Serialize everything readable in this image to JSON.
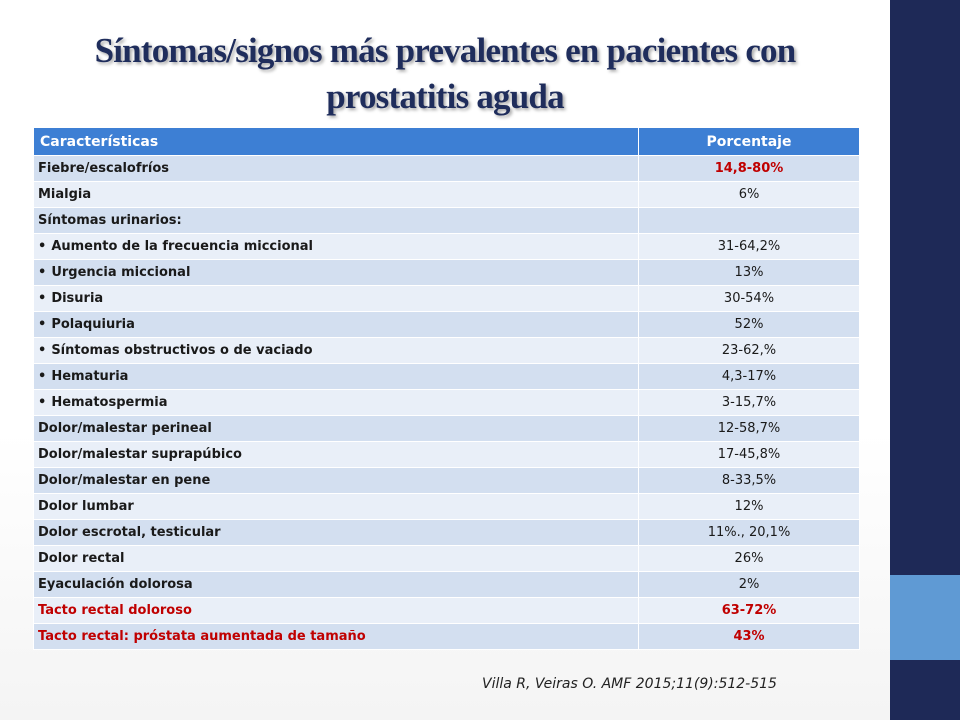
{
  "slide": {
    "title": "Síntomas/signos más prevalentes en pacientes con prostatitis aguda",
    "citation": "Villa R, Veiras O. AMF 2015;11(9):512-515",
    "colors": {
      "title": "#1f2d5c",
      "header": "#3d7fd4",
      "row_odd": "#d3dff0",
      "row_even": "#e9eff8",
      "highlight": "#c00000",
      "side_bar": "#1e2957",
      "side_accent": "#5f9ad4"
    }
  },
  "table": {
    "headers": [
      "Características",
      "Porcentaje"
    ],
    "rows": [
      {
        "label": "Fiebre/escalofríos",
        "value": "14,8-80%",
        "bullet": false,
        "value_red": true,
        "value_bold": true
      },
      {
        "label": "Mialgia",
        "value": "6%",
        "bullet": false
      },
      {
        "label": "Síntomas urinarios:",
        "value": "",
        "bullet": false
      },
      {
        "label": "Aumento de la frecuencia miccional",
        "value": "31-64,2%",
        "bullet": true
      },
      {
        "label": "Urgencia miccional",
        "value": "13%",
        "bullet": true
      },
      {
        "label": "Disuria",
        "value": "30-54%",
        "bullet": true
      },
      {
        "label": "Polaquiuria",
        "value": "52%",
        "bullet": true
      },
      {
        "label": "Síntomas obstructivos o de vaciado",
        "value": "23-62,%",
        "bullet": true
      },
      {
        "label": "Hematuria",
        "value": "4,3-17%",
        "bullet": true
      },
      {
        "label": "Hematospermia",
        "value": "3-15,7%",
        "bullet": true
      },
      {
        "label": "Dolor/malestar perineal",
        "value": "12-58,7%",
        "bullet": false
      },
      {
        "label": "Dolor/malestar suprapúbico",
        "value": "17-45,8%",
        "bullet": false
      },
      {
        "label": "Dolor/malestar en pene",
        "value": "8-33,5%",
        "bullet": false
      },
      {
        "label": "Dolor lumbar",
        "value": "12%",
        "bullet": false
      },
      {
        "label": "Dolor escrotal, testicular",
        "value": "11%., 20,1%",
        "bullet": false
      },
      {
        "label": "Dolor rectal",
        "value": "26%",
        "bullet": false
      },
      {
        "label": "Eyaculación dolorosa",
        "value": "2%",
        "bullet": false
      },
      {
        "label": "Tacto rectal doloroso",
        "value": "63-72%",
        "bullet": false,
        "row_red": true,
        "value_bold": true
      },
      {
        "label": "Tacto rectal: próstata aumentada de tamaño",
        "value": "43%",
        "bullet": false,
        "row_red": true,
        "value_bold": true
      }
    ]
  }
}
